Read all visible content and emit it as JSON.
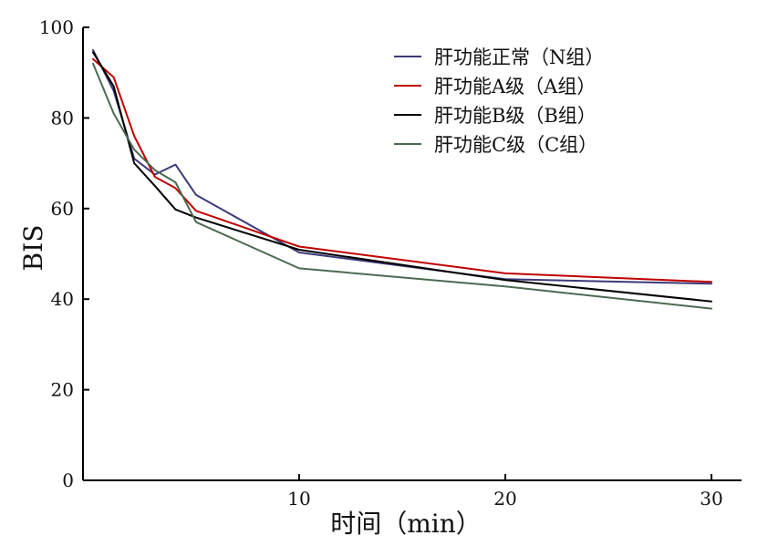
{
  "chart_data": {
    "type": "line",
    "title": "",
    "xlabel": "时间（min）",
    "ylabel": "BIS",
    "xlim": [
      0,
      31
    ],
    "ylim": [
      0,
      100
    ],
    "xticks": [
      10,
      20,
      30
    ],
    "yticks": [
      0,
      20,
      40,
      60,
      80,
      100
    ],
    "grid": false,
    "legend_position": "top-right",
    "series": [
      {
        "name": "肝功能正常（N组）",
        "color": "#3b3a7a",
        "points": [
          [
            0,
            95
          ],
          [
            1,
            86
          ],
          [
            2,
            71
          ],
          [
            3,
            67.5
          ],
          [
            4,
            69.7
          ],
          [
            5,
            63
          ],
          [
            10,
            50.3
          ],
          [
            20,
            44.4
          ],
          [
            30,
            43.4
          ]
        ]
      },
      {
        "name": "肝功能A级（A组）",
        "color": "#c00000",
        "points": [
          [
            0,
            93
          ],
          [
            1,
            89
          ],
          [
            2,
            76
          ],
          [
            3,
            67
          ],
          [
            4,
            64.5
          ],
          [
            5,
            59.5
          ],
          [
            10,
            51.6
          ],
          [
            20,
            45.7
          ],
          [
            30,
            43.8
          ]
        ]
      },
      {
        "name": "肝功能B级（B组）",
        "color": "#000000",
        "points": [
          [
            0,
            94.5
          ],
          [
            1,
            87
          ],
          [
            2,
            70
          ],
          [
            3,
            65
          ],
          [
            4,
            59.8
          ],
          [
            5,
            58
          ],
          [
            10,
            50.9
          ],
          [
            20,
            44.2
          ],
          [
            30,
            39.5
          ]
        ]
      },
      {
        "name": "肝功能C级（C组）",
        "color": "#4a6b50",
        "points": [
          [
            0,
            92
          ],
          [
            1,
            81
          ],
          [
            2,
            73
          ],
          [
            3,
            68.5
          ],
          [
            4,
            65.8
          ],
          [
            5,
            57
          ],
          [
            10,
            46.8
          ],
          [
            20,
            42.8
          ],
          [
            30,
            37.9
          ]
        ]
      }
    ]
  }
}
